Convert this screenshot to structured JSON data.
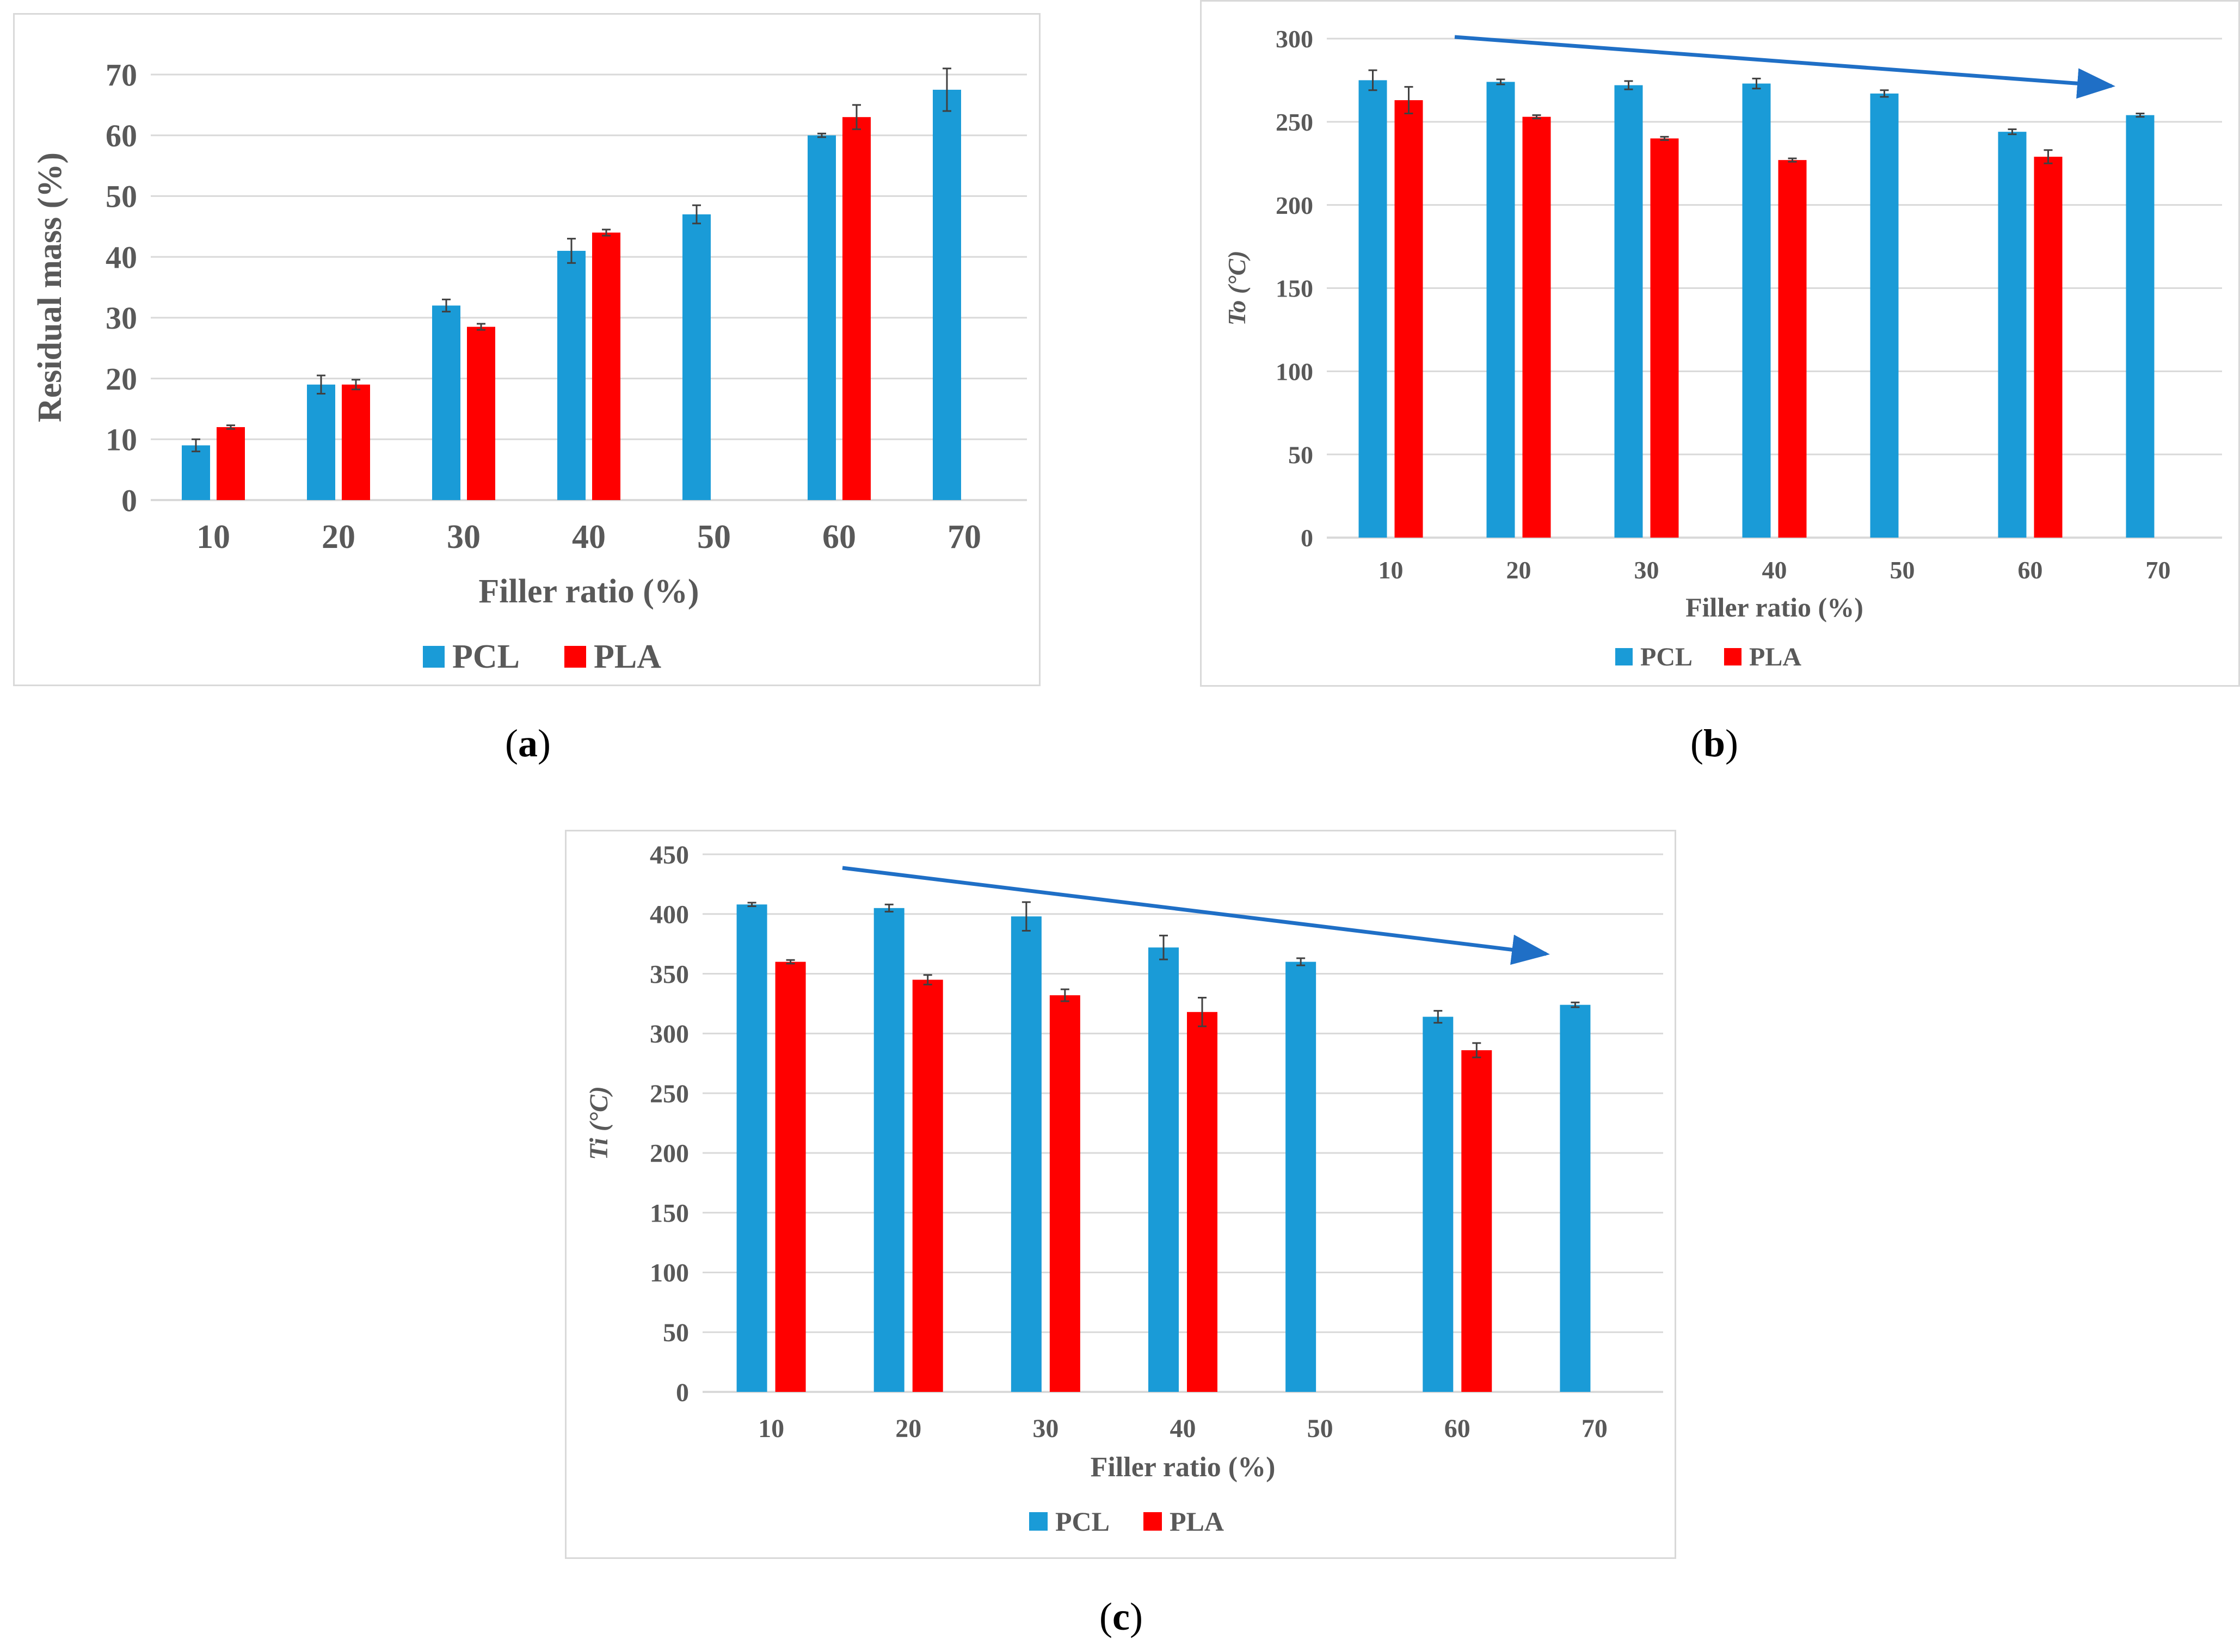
{
  "colors": {
    "pcl": "#1a9bd7",
    "pla": "#ff0000",
    "grid": "#d9d9d9",
    "arrow": "#1f6fc6",
    "axis_text": "#595959",
    "error": "#404040"
  },
  "captions": [
    "a",
    "b",
    "c"
  ],
  "chart_data": [
    {
      "id": "a",
      "type": "bar",
      "title": "",
      "xlabel": "Filler ratio (%)",
      "ylabel": "Residual mass (%)",
      "categories": [
        "10",
        "20",
        "30",
        "40",
        "50",
        "60",
        "70"
      ],
      "ylim": [
        0,
        70
      ],
      "ytick_step": 10,
      "legend_position": "bottom",
      "trend_arrow": false,
      "series": [
        {
          "name": "PCL",
          "values": [
            9,
            19,
            32,
            41,
            47,
            60,
            67.5
          ],
          "errors": [
            1,
            1.5,
            1,
            2,
            1.5,
            0.3,
            3.5
          ]
        },
        {
          "name": "PLA",
          "values": [
            12,
            19,
            28.5,
            44,
            null,
            63,
            null
          ],
          "errors": [
            0.3,
            0.8,
            0.5,
            0.5,
            null,
            2,
            null
          ]
        }
      ]
    },
    {
      "id": "b",
      "type": "bar",
      "title": "",
      "xlabel": "Filler ratio (%)",
      "ylabel": "To (°C)",
      "categories": [
        "10",
        "20",
        "30",
        "40",
        "50",
        "60",
        "70"
      ],
      "ylim": [
        0,
        300
      ],
      "ytick_step": 50,
      "legend_position": "bottom",
      "trend_arrow": true,
      "series": [
        {
          "name": "PCL",
          "values": [
            275,
            274,
            272,
            273,
            267,
            244,
            254
          ],
          "errors": [
            6,
            1.5,
            2.5,
            3,
            2,
            1.5,
            1
          ]
        },
        {
          "name": "PLA",
          "values": [
            263,
            253,
            240,
            227,
            null,
            229,
            null
          ],
          "errors": [
            8,
            1,
            1,
            1,
            null,
            4,
            null
          ]
        }
      ]
    },
    {
      "id": "c",
      "type": "bar",
      "title": "",
      "xlabel": "Filler ratio (%)",
      "ylabel": "Ti (°C)",
      "categories": [
        "10",
        "20",
        "30",
        "40",
        "50",
        "60",
        "70"
      ],
      "ylim": [
        0,
        450
      ],
      "ytick_step": 50,
      "legend_position": "bottom",
      "trend_arrow": true,
      "series": [
        {
          "name": "PCL",
          "values": [
            408,
            405,
            398,
            372,
            360,
            314,
            324
          ],
          "errors": [
            1.5,
            3,
            12,
            10,
            3,
            5,
            2
          ]
        },
        {
          "name": "PLA",
          "values": [
            360,
            345,
            332,
            318,
            null,
            286,
            null
          ],
          "errors": [
            1.5,
            4,
            5,
            12,
            null,
            6,
            null
          ]
        }
      ]
    }
  ]
}
